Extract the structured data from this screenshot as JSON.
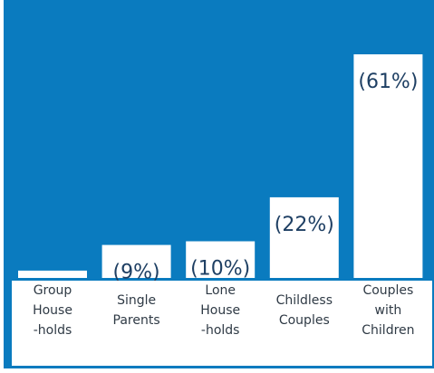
{
  "chart_data": {
    "type": "bar",
    "categories": [
      "Group House -holds",
      "Single Parents",
      "Lone House -holds",
      "Childless Couples",
      "Couples with Children"
    ],
    "category_lines": [
      [
        "Group",
        "House",
        "-holds"
      ],
      [
        "Single",
        "Parents"
      ],
      [
        "Lone",
        "House",
        "-holds"
      ],
      [
        "Childless",
        "Couples"
      ],
      [
        "Couples",
        "with",
        "Children"
      ]
    ],
    "values": [
      2,
      9,
      10,
      22,
      61
    ],
    "value_labels": [
      "",
      "(9%)",
      "(10%)",
      "(22%)",
      "(61%)"
    ],
    "ylim": [
      0,
      65
    ],
    "title": "",
    "xlabel": "",
    "ylabel": "",
    "colors": {
      "background": "#0a7bbf",
      "bar": "#ffffff",
      "label_text": "#1e3f63",
      "category_text": "#2f3a45",
      "border": "#0a7bbf"
    }
  }
}
